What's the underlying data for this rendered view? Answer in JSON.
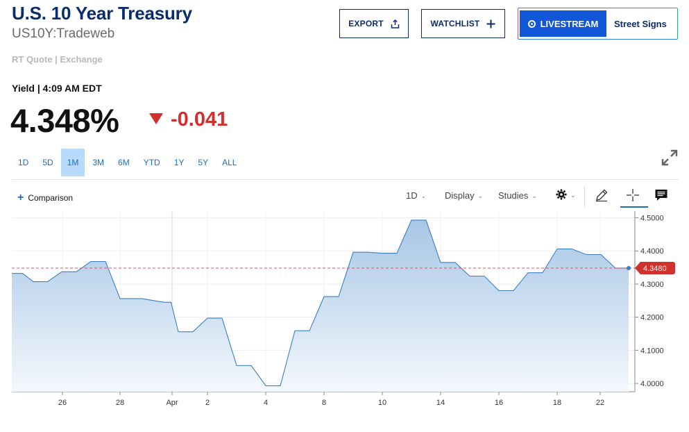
{
  "header": {
    "title": "U.S. 10 Year Treasury",
    "symbol": "US10Y:Tradeweb",
    "quote_source": "RT Quote | Exchange"
  },
  "actions": {
    "export_label": "EXPORT",
    "watchlist_label": "WATCHLIST",
    "livestream_label": "LIVESTREAM",
    "street_signs_label": "Street Signs"
  },
  "quote": {
    "yield_label": "Yield | 4:09 AM EDT",
    "price": "4.348%",
    "change": "-0.041",
    "direction": "down"
  },
  "ranges": {
    "items": [
      "1D",
      "5D",
      "1M",
      "3M",
      "6M",
      "YTD",
      "1Y",
      "5Y",
      "ALL"
    ],
    "active": "1M"
  },
  "toolbar": {
    "comparison_label": "Comparison",
    "interval_label": "1D",
    "display_label": "Display",
    "studies_label": "Studies",
    "settings_icon": "gear-icon",
    "draw_icon": "pencil-icon",
    "crosshair_icon": "crosshair-icon",
    "comments_icon": "comment-icon"
  },
  "colors": {
    "brand_navy": "#0b2c6b",
    "accent_blue": "#1b6ec2",
    "down_red": "#d32f2f",
    "live_blue": "#1257d8",
    "active_range_bg": "#b9dbfb"
  },
  "chart_data": {
    "type": "area",
    "x": [
      "Mar 24",
      "Mar 25",
      "Mar 26",
      "Mar 27",
      "Mar 28",
      "Mar 31",
      "Apr 1",
      "Apr 2",
      "Apr 3",
      "Apr 4",
      "Apr 7",
      "Apr 8",
      "Apr 9",
      "Apr 10",
      "Apr 11",
      "Apr 14",
      "Apr 15",
      "Apr 16",
      "Apr 17",
      "Apr 18",
      "Apr 21",
      "Apr 22",
      "Apr 23"
    ],
    "values": [
      4.332,
      4.307,
      4.337,
      4.368,
      4.256,
      4.245,
      4.156,
      4.197,
      4.054,
      3.993,
      4.159,
      4.262,
      4.396,
      4.393,
      4.493,
      4.365,
      4.324,
      4.28,
      4.334,
      4.406,
      4.389,
      4.348,
      4.348
    ],
    "ylim": [
      3.975,
      4.52
    ],
    "y_ticks": [
      "4.5000",
      "4.4000",
      "4.3000",
      "4.2000",
      "4.1000",
      "4.0000"
    ],
    "x_tick_labels": [
      "26",
      "28",
      "Apr",
      "2",
      "4",
      "8",
      "10",
      "14",
      "16",
      "18",
      "22"
    ],
    "last_price_label": "4.3480",
    "last_price": 4.348,
    "reference_line": 4.348,
    "grid": true,
    "line_color": "#3d7ec4",
    "fill_color_top": "#a7c6e6",
    "fill_color_bottom": "#f4f8fc",
    "reference_line_color": "#d9534f"
  }
}
